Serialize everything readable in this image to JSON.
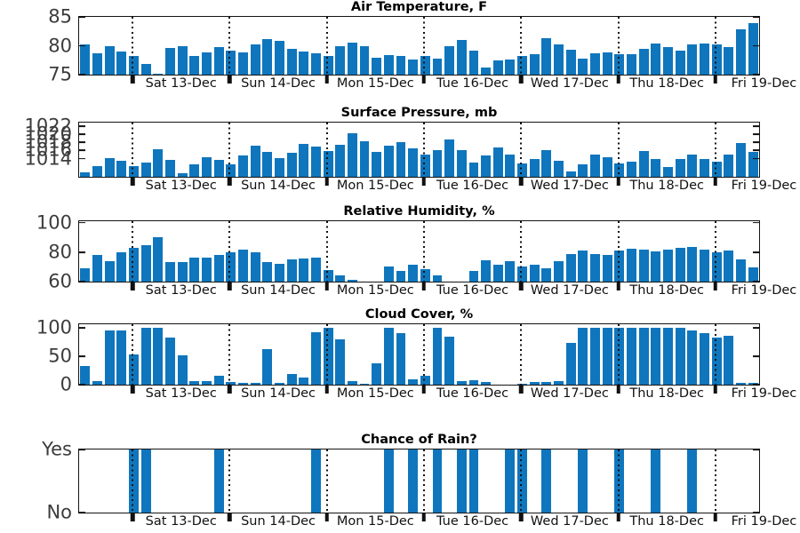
{
  "figure": {
    "bar_color": "#0F76BD",
    "axis_color": "#141414",
    "tick_label_color": "#3c3c3c",
    "n_bars": 56,
    "bars_per_day": 8,
    "day_boundaries_slots": [
      4.4,
      12.4,
      20.4,
      28.4,
      36.4,
      44.4,
      52.4
    ],
    "day_label_center_slots": [
      8.4,
      16.4,
      24.4,
      32.4,
      40.4,
      48.4,
      56.4
    ],
    "day_labels": [
      "Sat 13-Dec",
      "Sun 14-Dec",
      "Mon 15-Dec",
      "Tue 16-Dec",
      "Wed 17-Dec",
      "Thu 18-Dec",
      "Fri 19-Dec"
    ]
  },
  "chart_data": [
    {
      "type": "bar",
      "title": "Air Temperature, F",
      "ylim": [
        75,
        85
      ],
      "yticks": [
        {
          "value": 75,
          "label": "75"
        },
        {
          "value": 80,
          "label": "80"
        },
        {
          "value": 85,
          "label": "85"
        }
      ],
      "values": [
        80.3,
        78.7,
        80.0,
        79.0,
        78.2,
        76.8,
        75.2,
        79.6,
        80.0,
        78.3,
        78.9,
        79.7,
        79.1,
        78.8,
        80.3,
        81.2,
        80.9,
        79.4,
        79.0,
        78.7,
        78.3,
        79.9,
        80.5,
        80.0,
        77.9,
        78.4,
        78.3,
        77.6,
        78.2,
        77.8,
        80.0,
        81.0,
        79.2,
        76.3,
        77.5,
        77.6,
        78.2,
        78.5,
        81.3,
        80.3,
        79.3,
        77.8,
        78.7,
        78.9,
        78.5,
        78.6,
        79.4,
        80.4,
        79.8,
        79.1,
        80.2,
        80.4,
        80.2,
        79.8,
        82.8,
        83.9
      ]
    },
    {
      "type": "bar",
      "title": "Surface Pressure, mb",
      "ylim": [
        1009.5,
        1022.9
      ],
      "yticks": [
        {
          "value": 1014,
          "label": "1014"
        },
        {
          "value": 1016,
          "label": "1016"
        },
        {
          "value": 1018,
          "label": "1018"
        },
        {
          "value": 1020,
          "label": "1020"
        },
        {
          "value": 1022,
          "label": "1022"
        }
      ],
      "values": [
        1010.5,
        1012.2,
        1014.2,
        1013.5,
        1012.1,
        1013.1,
        1016.3,
        1013.7,
        1010.3,
        1012.6,
        1014.4,
        1013.6,
        1012.5,
        1014.8,
        1017.2,
        1015.6,
        1014.1,
        1015.5,
        1017.6,
        1016.9,
        1015.9,
        1017.4,
        1020.3,
        1018.3,
        1015.6,
        1017.2,
        1018.1,
        1016.6,
        1014.9,
        1016.0,
        1018.7,
        1016.0,
        1013.0,
        1014.7,
        1016.7,
        1014.9,
        1012.9,
        1013.8,
        1016.2,
        1013.4,
        1010.9,
        1012.5,
        1014.9,
        1014.3,
        1012.7,
        1013.3,
        1015.9,
        1014.0,
        1012.0,
        1014.0,
        1014.9,
        1014.0,
        1013.2,
        1014.9,
        1017.8,
        1015.6
      ]
    },
    {
      "type": "bar",
      "title": "Relative Humidity, %",
      "ylim": [
        60,
        101
      ],
      "yticks": [
        {
          "value": 60,
          "label": "60"
        },
        {
          "value": 80,
          "label": "80"
        },
        {
          "value": 100,
          "label": "100"
        }
      ],
      "values": [
        69,
        78,
        74,
        80,
        83,
        84.5,
        90,
        73,
        73,
        76,
        76,
        78,
        80,
        81.5,
        80,
        73.5,
        72,
        75,
        75.5,
        76.5,
        68,
        64,
        61,
        60,
        60,
        70,
        67,
        71.5,
        68.5,
        64,
        60,
        60,
        67.5,
        74.5,
        71.5,
        74,
        70.5,
        71.5,
        69,
        74,
        78.5,
        81,
        79,
        78,
        81,
        82.5,
        82,
        80.5,
        81.5,
        83,
        83.5,
        82,
        80,
        81,
        75,
        69.5
      ]
    },
    {
      "type": "bar",
      "title": "Cloud Cover, %",
      "ylim": [
        0,
        106
      ],
      "yticks": [
        {
          "value": 0,
          "label": "0"
        },
        {
          "value": 50,
          "label": "50"
        },
        {
          "value": 100,
          "label": "100"
        }
      ],
      "values": [
        33,
        7,
        95,
        95,
        53,
        100,
        100,
        82,
        52,
        6,
        6,
        15,
        5,
        3,
        3,
        62,
        3,
        18,
        12,
        92,
        100,
        80,
        6,
        2,
        37,
        100,
        90,
        9,
        16,
        100,
        84,
        6,
        8,
        4,
        0,
        0,
        1,
        4,
        4,
        6,
        73,
        100,
        100,
        100,
        100,
        100,
        100,
        100,
        100,
        100,
        95,
        90,
        83,
        86,
        3,
        3
      ]
    },
    {
      "type": "bar",
      "title": "Chance of Rain?",
      "ylim": [
        0,
        1
      ],
      "yticks": [
        {
          "value": 0,
          "label": "No"
        },
        {
          "value": 1,
          "label": "Yes"
        }
      ],
      "values": [
        0,
        0,
        0,
        0,
        1,
        1,
        0,
        0,
        0,
        0,
        0,
        1,
        0,
        0,
        0,
        0,
        0,
        0,
        0,
        1,
        0,
        0,
        0,
        0,
        0,
        1,
        0,
        1,
        0,
        1,
        0,
        1,
        1,
        0,
        0,
        1,
        1,
        0,
        1,
        0,
        0,
        1,
        0,
        0,
        1,
        0,
        0,
        1,
        0,
        0,
        1,
        0,
        0,
        0,
        0,
        0
      ]
    }
  ]
}
